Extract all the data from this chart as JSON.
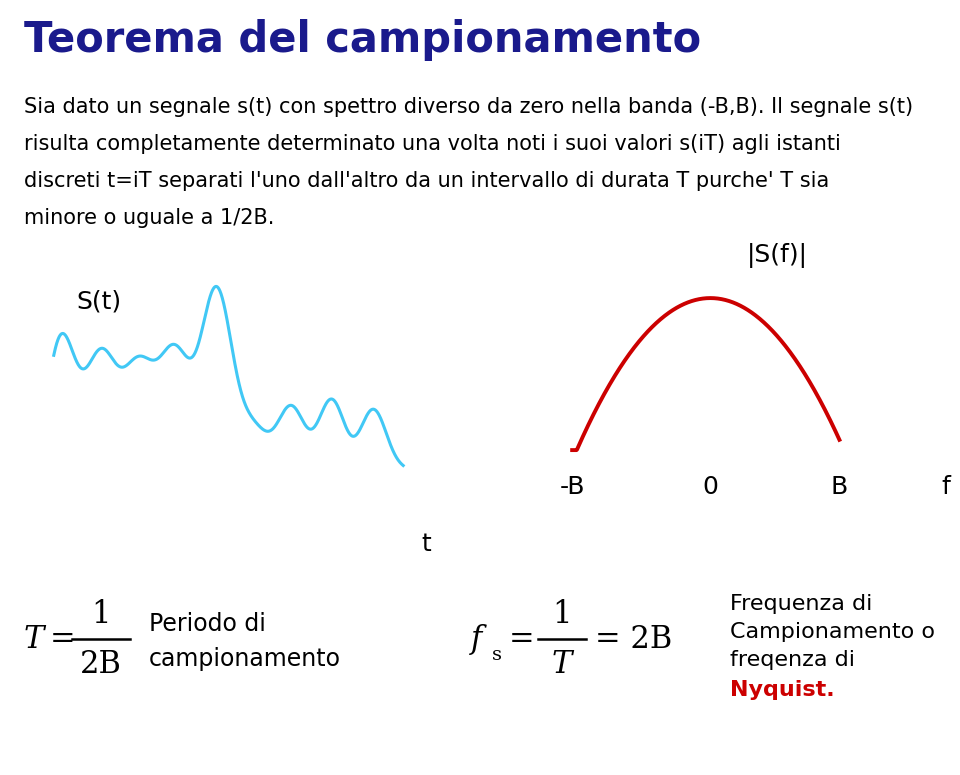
{
  "title": "Teorema del campionamento",
  "title_color": "#1a1a8c",
  "title_fontsize": 30,
  "body_line1": "Sia dato un segnale s(t) con spettro diverso da zero nella banda (-B,B). Il segnale s(t)",
  "body_line2": "risulta completamente determinato una volta noti i suoi valori s(iT) agli istanti",
  "body_line3": "discreti t=iT separati l'uno dall'altro da un intervallo di durata T purche' T sia",
  "body_line4": "minore o uguale a 1/2B.",
  "body_fontsize": 15,
  "signal_color": "#41c8f5",
  "spectrum_color": "#cc0000",
  "text_color": "#000000",
  "background_color": "#ffffff",
  "label_fontsize": 18,
  "formula_fontsize": 22,
  "sub_fontsize": 14
}
